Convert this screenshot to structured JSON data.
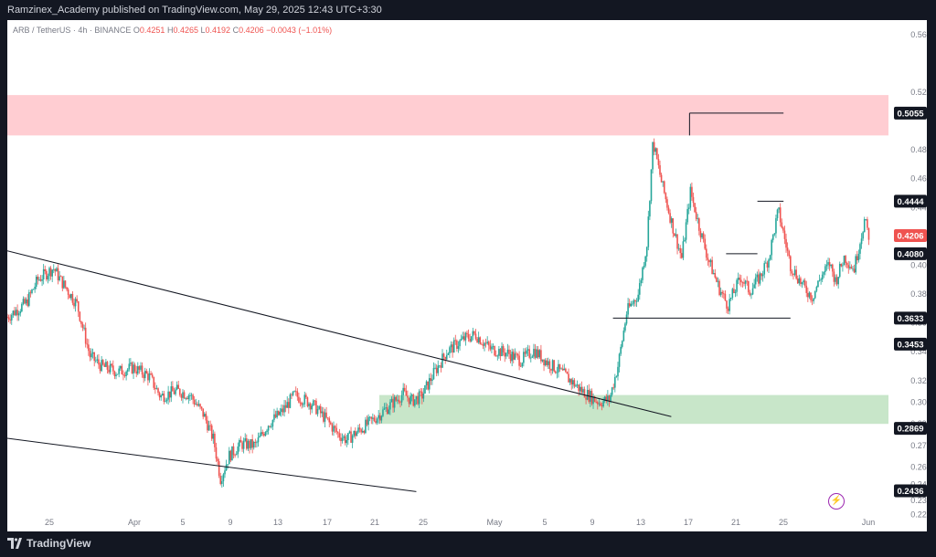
{
  "header": {
    "published_by": "Ramzinex_Academy published on TradingView.com, May 29, 2025 12:43 UTC+3:30"
  },
  "legend": {
    "symbol": "ARB / TetherUS · 4h · BINANCE",
    "o_label": "O",
    "o": "0.4251",
    "h_label": "H",
    "h": "0.4265",
    "l_label": "L",
    "l": "0.4192",
    "c_label": "C",
    "c": "0.4206",
    "change": "−0.0043 (−1.01%)"
  },
  "footer": {
    "brand": "TradingView"
  },
  "colors": {
    "up": "#26a69a",
    "down": "#ef5350",
    "supply_zone": "#ffcdd2",
    "demand_zone": "#c8e6c9",
    "line": "#131722"
  },
  "chart_data": {
    "type": "candlestick",
    "ylim": [
      0.223,
      0.57
    ],
    "y_ticks": [
      "0.5600",
      "0.5200",
      "0.4800",
      "0.4600",
      "0.4400",
      "0.4200",
      "0.4000",
      "0.3800",
      "0.3600",
      "0.3400",
      "0.3200",
      "0.3050",
      "0.2900",
      "0.2750",
      "0.2600",
      "0.2480",
      "0.2370",
      "0.2270"
    ],
    "x_ticks": [
      "25",
      "Apr",
      "5",
      "9",
      "13",
      "17",
      "21",
      "25",
      "May",
      "5",
      "9",
      "13",
      "17",
      "21",
      "25",
      "Jun"
    ],
    "price_labels": [
      {
        "value": 0.5055,
        "text": "0.5055"
      },
      {
        "value": 0.4444,
        "text": "0.4444"
      },
      {
        "value": 0.4206,
        "text": "0.4206",
        "current": true
      },
      {
        "value": 0.408,
        "text": "0.4080"
      },
      {
        "value": 0.3633,
        "text": "0.3633"
      },
      {
        "value": 0.3453,
        "text": "0.3453"
      },
      {
        "value": 0.2869,
        "text": "0.2869"
      },
      {
        "value": 0.2436,
        "text": "0.2436"
      }
    ],
    "zones": [
      {
        "name": "supply",
        "from": 0.49,
        "to": 0.518
      },
      {
        "name": "demand",
        "from": 0.29,
        "to": 0.31
      }
    ],
    "levels": [
      {
        "price": 0.5055,
        "from_day": 78.4,
        "to_day": 89.2
      },
      {
        "price": 0.4444,
        "from_day": 86.2,
        "to_day": 89.2
      },
      {
        "price": 0.408,
        "from_day": 82.6,
        "to_day": 86.2
      },
      {
        "price": 0.3633,
        "from_day": 69.6,
        "to_day": 90.0
      }
    ],
    "trendlines": [
      {
        "p1": [
          0,
          0.41
        ],
        "p2": [
          76.3,
          0.295
        ]
      },
      {
        "p1": [
          0,
          0.28
        ],
        "p2": [
          47,
          0.243
        ]
      }
    ],
    "price_path": [
      [
        0,
        0.364
      ],
      [
        2.2,
        0.374
      ],
      [
        3.5,
        0.39
      ],
      [
        5.3,
        0.398
      ],
      [
        6.2,
        0.389
      ],
      [
        8.0,
        0.373
      ],
      [
        9.5,
        0.337
      ],
      [
        10.8,
        0.33
      ],
      [
        12.7,
        0.326
      ],
      [
        14.5,
        0.329
      ],
      [
        16.3,
        0.323
      ],
      [
        17.6,
        0.309
      ],
      [
        19.5,
        0.313
      ],
      [
        21.0,
        0.31
      ],
      [
        22.6,
        0.296
      ],
      [
        23.7,
        0.279
      ],
      [
        24.5,
        0.252
      ],
      [
        25.5,
        0.268
      ],
      [
        26.9,
        0.276
      ],
      [
        28.5,
        0.275
      ],
      [
        30.0,
        0.29
      ],
      [
        31.5,
        0.298
      ],
      [
        33.0,
        0.31
      ],
      [
        35.0,
        0.304
      ],
      [
        36.5,
        0.294
      ],
      [
        38.0,
        0.283
      ],
      [
        39.0,
        0.279
      ],
      [
        41.0,
        0.288
      ],
      [
        42.5,
        0.295
      ],
      [
        44.0,
        0.303
      ],
      [
        45.5,
        0.311
      ],
      [
        46.5,
        0.306
      ],
      [
        47.6,
        0.309
      ],
      [
        49.0,
        0.325
      ],
      [
        50.5,
        0.34
      ],
      [
        52.5,
        0.349
      ],
      [
        53.8,
        0.352
      ],
      [
        55.5,
        0.342
      ],
      [
        57.5,
        0.339
      ],
      [
        59.0,
        0.334
      ],
      [
        60.5,
        0.341
      ],
      [
        62.0,
        0.333
      ],
      [
        64.0,
        0.324
      ],
      [
        66.0,
        0.313
      ],
      [
        68.0,
        0.305
      ],
      [
        69.2,
        0.307
      ],
      [
        70.2,
        0.331
      ],
      [
        71.2,
        0.368
      ],
      [
        72.5,
        0.38
      ],
      [
        73.5,
        0.415
      ],
      [
        74.2,
        0.486
      ],
      [
        75.2,
        0.457
      ],
      [
        76.5,
        0.426
      ],
      [
        77.5,
        0.405
      ],
      [
        78.5,
        0.451
      ],
      [
        79.5,
        0.427
      ],
      [
        80.5,
        0.405
      ],
      [
        81.8,
        0.384
      ],
      [
        82.8,
        0.372
      ],
      [
        84.3,
        0.392
      ],
      [
        85.3,
        0.382
      ],
      [
        86.5,
        0.392
      ],
      [
        87.5,
        0.405
      ],
      [
        88.6,
        0.438
      ],
      [
        90.0,
        0.4
      ],
      [
        91.5,
        0.385
      ],
      [
        92.5,
        0.378
      ],
      [
        93.5,
        0.392
      ],
      [
        94.5,
        0.401
      ],
      [
        95.2,
        0.389
      ],
      [
        96.2,
        0.406
      ],
      [
        97.3,
        0.397
      ],
      [
        98.5,
        0.431
      ],
      [
        99.0,
        0.4206
      ]
    ]
  }
}
